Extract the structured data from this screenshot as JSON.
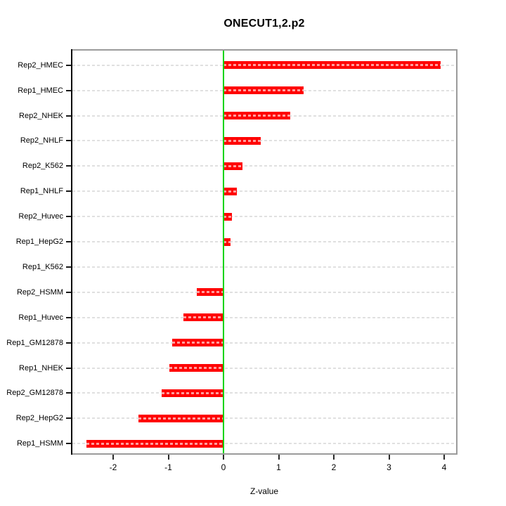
{
  "chart_data": {
    "type": "bar",
    "orientation": "horizontal",
    "title": "ONECUT1,2.p2",
    "xlabel": "Z-value",
    "ylabel": "",
    "categories": [
      "Rep2_HMEC",
      "Rep1_HMEC",
      "Rep2_NHEK",
      "Rep2_NHLF",
      "Rep2_K562",
      "Rep1_NHLF",
      "Rep2_Huvec",
      "Rep1_HepG2",
      "Rep1_K562",
      "Rep2_HSMM",
      "Rep1_Huvec",
      "Rep1_GM12878",
      "Rep1_NHEK",
      "Rep2_GM12878",
      "Rep2_HepG2",
      "Rep1_HSMM"
    ],
    "values": [
      3.94,
      1.45,
      1.21,
      0.68,
      0.34,
      0.24,
      0.15,
      0.13,
      0.0,
      -0.49,
      -0.72,
      -0.93,
      -0.98,
      -1.12,
      -1.54,
      -2.48
    ],
    "xlim": [
      -2.74,
      4.22
    ],
    "xticks": [
      -2,
      -1,
      0,
      1,
      2,
      3,
      4
    ],
    "grid": "dashed-horizontal-per-row",
    "legend": "none",
    "bar_color": "#ff0000",
    "zero_line_color": "#00d400",
    "grid_color": "#e0e0e0",
    "box_color": "#9b9b9b",
    "yaxis_color": "#000000"
  }
}
